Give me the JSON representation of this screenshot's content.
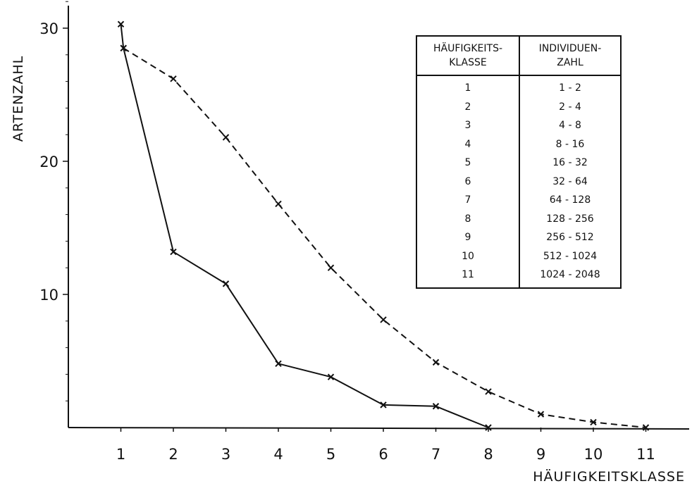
{
  "chart_data": {
    "type": "line",
    "title": "",
    "xlabel": "HÄUFIGKEITSKLASSE",
    "ylabel": "ARTENZAHL",
    "x_ticks": [
      "1",
      "2",
      "3",
      "4",
      "5",
      "6",
      "7",
      "8",
      "9",
      "10",
      "11"
    ],
    "y_ticks": [
      "10",
      "20",
      "30"
    ],
    "xlim": [
      0,
      11.9
    ],
    "ylim": [
      0,
      32
    ],
    "grid": false,
    "series": [
      {
        "style": "solid",
        "marker": "x",
        "points": [
          [
            1,
            30.3
          ],
          [
            1.05,
            28.5
          ],
          [
            2,
            13.2
          ],
          [
            3,
            10.8
          ],
          [
            4,
            4.8
          ],
          [
            5,
            3.8
          ],
          [
            6,
            1.7
          ],
          [
            7,
            1.6
          ],
          [
            8,
            0
          ]
        ]
      },
      {
        "style": "dashed",
        "marker": "x",
        "points": [
          [
            1.05,
            28.5
          ],
          [
            2,
            26.2
          ],
          [
            3,
            21.8
          ],
          [
            4,
            16.8
          ],
          [
            5,
            12.0
          ],
          [
            6,
            8.1
          ],
          [
            7,
            4.9
          ],
          [
            8,
            2.7
          ],
          [
            9,
            1.0
          ],
          [
            10,
            0.4
          ],
          [
            11,
            0
          ]
        ]
      }
    ],
    "table": {
      "headers": [
        [
          "HÄUFIGKEITS-",
          "KLASSE"
        ],
        [
          "INDIVIDUEN-",
          "ZAHL"
        ]
      ],
      "rows": [
        [
          "1",
          "1 - 2"
        ],
        [
          "2",
          "2 - 4"
        ],
        [
          "3",
          "4 - 8"
        ],
        [
          "4",
          "8 - 16"
        ],
        [
          "5",
          "16 - 32"
        ],
        [
          "6",
          "32 - 64"
        ],
        [
          "7",
          "64 - 128"
        ],
        [
          "8",
          "128 - 256"
        ],
        [
          "9",
          "256 - 512"
        ],
        [
          "10",
          "512 - 1024"
        ],
        [
          "11",
          "1024 - 2048"
        ]
      ]
    }
  }
}
